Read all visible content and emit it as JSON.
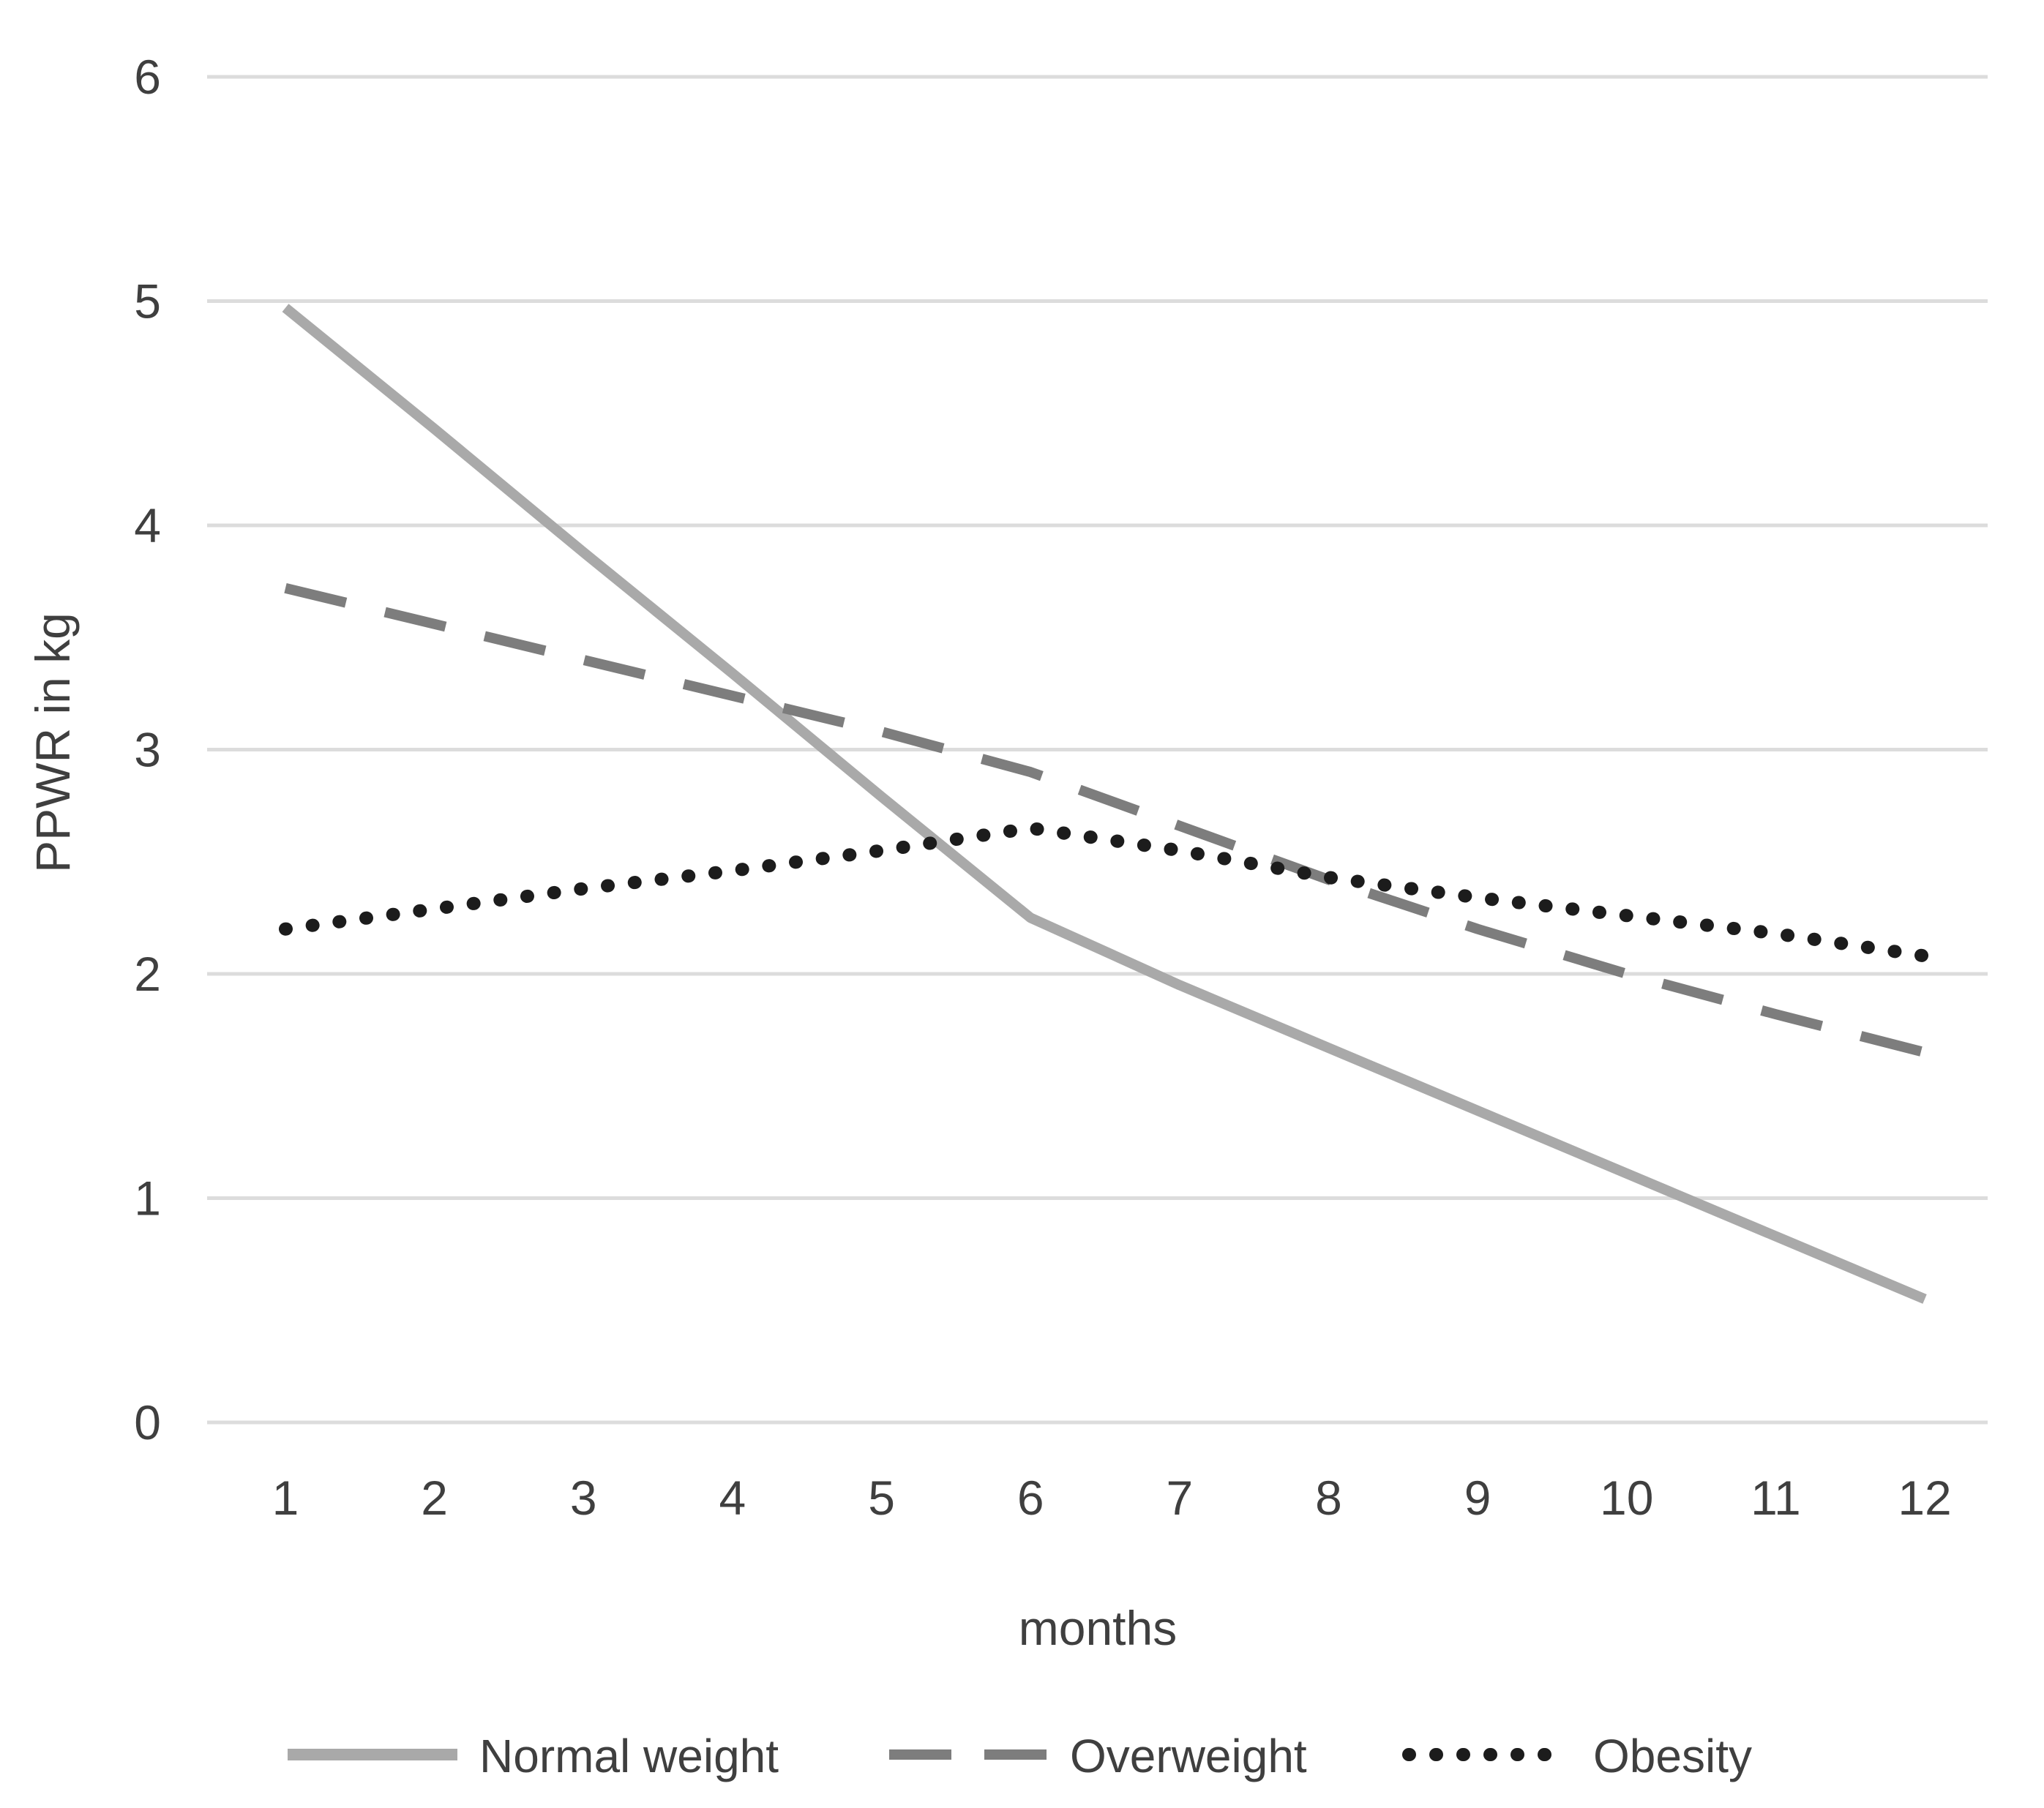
{
  "chart_data": {
    "type": "line",
    "title": "",
    "xlabel": "months",
    "ylabel": "PPWR in kg",
    "categories": [
      1,
      2,
      3,
      4,
      5,
      6,
      7,
      8,
      9,
      10,
      11,
      12
    ],
    "xticks": [
      "1",
      "2",
      "3",
      "4",
      "5",
      "6",
      "7",
      "8",
      "9",
      "10",
      "11",
      "12"
    ],
    "yticks": [
      "0",
      "1",
      "2",
      "3",
      "4",
      "5",
      "6"
    ],
    "ylim": [
      0,
      6
    ],
    "xlim": [
      1,
      12
    ],
    "grid": "horizontal",
    "legend_position": "bottom",
    "background_color": "#ffffff",
    "gridline_color": "#dcdcdc",
    "label_color": "#3f3f3f",
    "series": [
      {
        "name": "Normal weight",
        "style": "solid",
        "color": "#a9a9a9",
        "values": [
          4.97,
          4.43,
          3.88,
          3.34,
          2.79,
          2.25,
          1.95,
          1.67,
          1.39,
          1.11,
          0.83,
          0.55
        ]
      },
      {
        "name": "Overweight",
        "style": "dashed",
        "color": "#7d7d7d",
        "values": [
          3.72,
          3.56,
          3.4,
          3.24,
          3.08,
          2.9,
          2.66,
          2.42,
          2.2,
          2.0,
          1.82,
          1.65
        ]
      },
      {
        "name": "Obesity",
        "style": "dotted",
        "color": "#1c1c1c",
        "values": [
          2.2,
          2.29,
          2.38,
          2.46,
          2.55,
          2.65,
          2.55,
          2.43,
          2.34,
          2.26,
          2.18,
          2.08
        ]
      }
    ]
  }
}
